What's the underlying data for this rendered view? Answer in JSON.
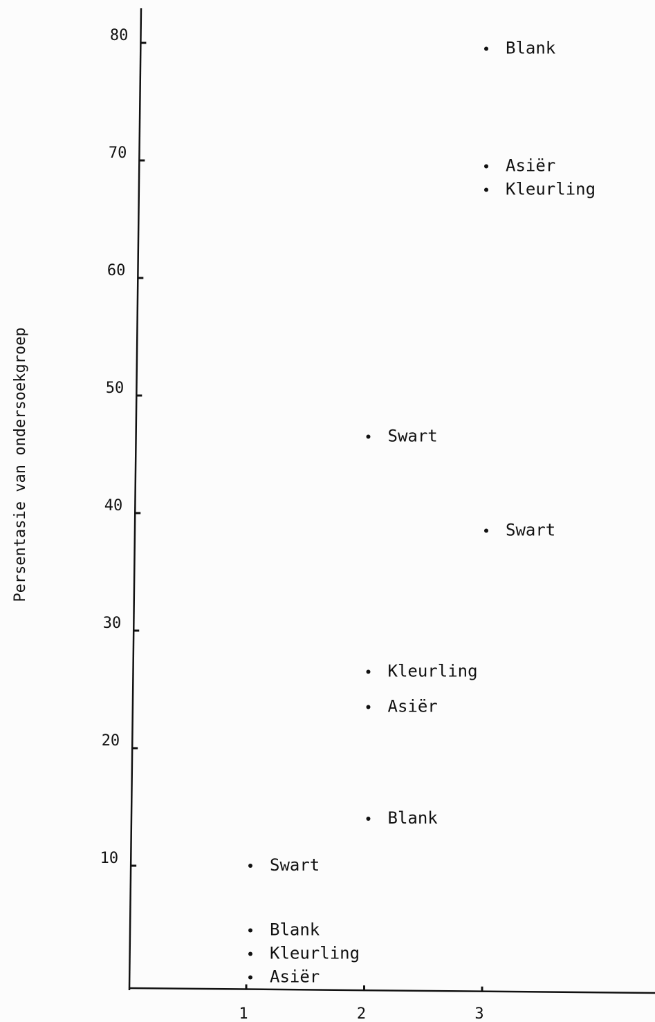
{
  "chart_data": {
    "type": "scatter",
    "title": "",
    "xlabel": "",
    "ylabel": "Persentasie van ondersoekgroep",
    "xlim": [
      0,
      4.5
    ],
    "ylim": [
      0,
      80
    ],
    "x_ticks": [
      1,
      2,
      3
    ],
    "y_ticks": [
      10,
      20,
      30,
      40,
      50,
      60,
      70,
      80
    ],
    "grid": false,
    "legend": "none",
    "points": [
      {
        "x": 1,
        "y": 4.5,
        "label": "Blank"
      },
      {
        "x": 1,
        "y": 2.5,
        "label": "Kleurling"
      },
      {
        "x": 1,
        "y": 0.5,
        "label": "Asiër"
      },
      {
        "x": 1,
        "y": 10,
        "label": "Swart"
      },
      {
        "x": 2,
        "y": 14,
        "label": "Blank"
      },
      {
        "x": 2,
        "y": 26.5,
        "label": "Kleurling"
      },
      {
        "x": 2,
        "y": 23.5,
        "label": "Asiër"
      },
      {
        "x": 2,
        "y": 46.5,
        "label": "Swart"
      },
      {
        "x": 3,
        "y": 79.5,
        "label": "Blank"
      },
      {
        "x": 3,
        "y": 67.5,
        "label": "Kleurling"
      },
      {
        "x": 3,
        "y": 69.5,
        "label": "Asiër"
      },
      {
        "x": 3,
        "y": 38.5,
        "label": "Swart"
      }
    ],
    "colors": {
      "ink": "#111111",
      "background": "#fcfcfc"
    }
  }
}
